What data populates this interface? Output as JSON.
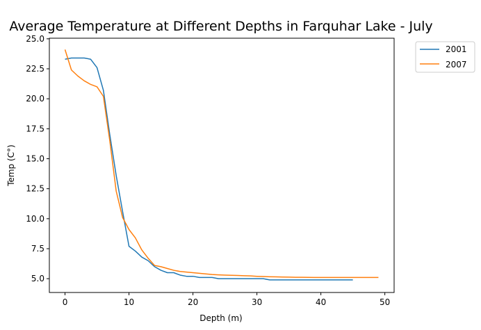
{
  "chart_data": {
    "type": "line",
    "title": "Average Temperature at Different Depths in Farquhar Lake - July",
    "xlabel": "Depth (m)",
    "ylabel": "Temp (C°)",
    "xlim": [
      -2.45,
      51.45
    ],
    "ylim": [
      3.85,
      25.05
    ],
    "xticks": [
      0,
      10,
      20,
      30,
      40,
      50
    ],
    "yticks": [
      5.0,
      7.5,
      10.0,
      12.5,
      15.0,
      17.5,
      20.0,
      22.5,
      25.0
    ],
    "xtick_labels": [
      "0",
      "10",
      "20",
      "30",
      "40",
      "50"
    ],
    "ytick_labels": [
      "5.0",
      "7.5",
      "10.0",
      "12.5",
      "15.0",
      "17.5",
      "20.0",
      "22.5",
      "25.0"
    ],
    "grid": false,
    "legend_position": "outside-top-right",
    "series": [
      {
        "name": "2001",
        "color": "#1f77b4",
        "points": [
          [
            0,
            23.3
          ],
          [
            1,
            23.4
          ],
          [
            2,
            23.4
          ],
          [
            3,
            23.4
          ],
          [
            4,
            23.3
          ],
          [
            5,
            22.6
          ],
          [
            6,
            20.7
          ],
          [
            7,
            17.0
          ],
          [
            8,
            13.6
          ],
          [
            9,
            10.6
          ],
          [
            10,
            7.7
          ],
          [
            11,
            7.3
          ],
          [
            12,
            6.8
          ],
          [
            13,
            6.5
          ],
          [
            14,
            6.0
          ],
          [
            15,
            5.7
          ],
          [
            16,
            5.5
          ],
          [
            17,
            5.5
          ],
          [
            18,
            5.3
          ],
          [
            19,
            5.2
          ],
          [
            20,
            5.2
          ],
          [
            21,
            5.1
          ],
          [
            22,
            5.1
          ],
          [
            23,
            5.1
          ],
          [
            24,
            5.0
          ],
          [
            25,
            5.0
          ],
          [
            26,
            5.0
          ],
          [
            27,
            5.0
          ],
          [
            28,
            5.0
          ],
          [
            29,
            5.0
          ],
          [
            30,
            5.0
          ],
          [
            31,
            5.0
          ],
          [
            32,
            4.9
          ],
          [
            33,
            4.9
          ],
          [
            34,
            4.9
          ],
          [
            35,
            4.9
          ],
          [
            36,
            4.9
          ],
          [
            37,
            4.9
          ],
          [
            38,
            4.9
          ],
          [
            39,
            4.9
          ],
          [
            40,
            4.9
          ],
          [
            41,
            4.9
          ],
          [
            42,
            4.9
          ],
          [
            43,
            4.9
          ],
          [
            44,
            4.9
          ],
          [
            45,
            4.9
          ]
        ]
      },
      {
        "name": "2007",
        "color": "#ff7f0e",
        "points": [
          [
            0,
            24.1
          ],
          [
            1,
            22.4
          ],
          [
            2,
            21.9
          ],
          [
            3,
            21.5
          ],
          [
            4,
            21.2
          ],
          [
            5,
            21.0
          ],
          [
            6,
            20.2
          ],
          [
            7,
            16.5
          ],
          [
            8,
            12.3
          ],
          [
            9,
            10.1
          ],
          [
            10,
            9.1
          ],
          [
            11,
            8.4
          ],
          [
            12,
            7.4
          ],
          [
            13,
            6.7
          ],
          [
            14,
            6.1
          ],
          [
            15,
            6.0
          ],
          [
            16,
            5.85
          ],
          [
            17,
            5.7
          ],
          [
            18,
            5.6
          ],
          [
            19,
            5.55
          ],
          [
            20,
            5.5
          ],
          [
            21,
            5.45
          ],
          [
            22,
            5.4
          ],
          [
            23,
            5.35
          ],
          [
            24,
            5.32
          ],
          [
            25,
            5.3
          ],
          [
            26,
            5.28
          ],
          [
            27,
            5.27
          ],
          [
            28,
            5.25
          ],
          [
            29,
            5.23
          ],
          [
            30,
            5.2
          ],
          [
            31,
            5.18
          ],
          [
            32,
            5.16
          ],
          [
            33,
            5.15
          ],
          [
            34,
            5.14
          ],
          [
            35,
            5.13
          ],
          [
            36,
            5.12
          ],
          [
            37,
            5.12
          ],
          [
            38,
            5.11
          ],
          [
            39,
            5.1
          ],
          [
            40,
            5.1
          ],
          [
            41,
            5.1
          ],
          [
            42,
            5.1
          ],
          [
            43,
            5.1
          ],
          [
            44,
            5.1
          ],
          [
            45,
            5.1
          ],
          [
            46,
            5.1
          ],
          [
            47,
            5.1
          ],
          [
            48,
            5.1
          ],
          [
            49,
            5.1
          ]
        ]
      }
    ]
  }
}
